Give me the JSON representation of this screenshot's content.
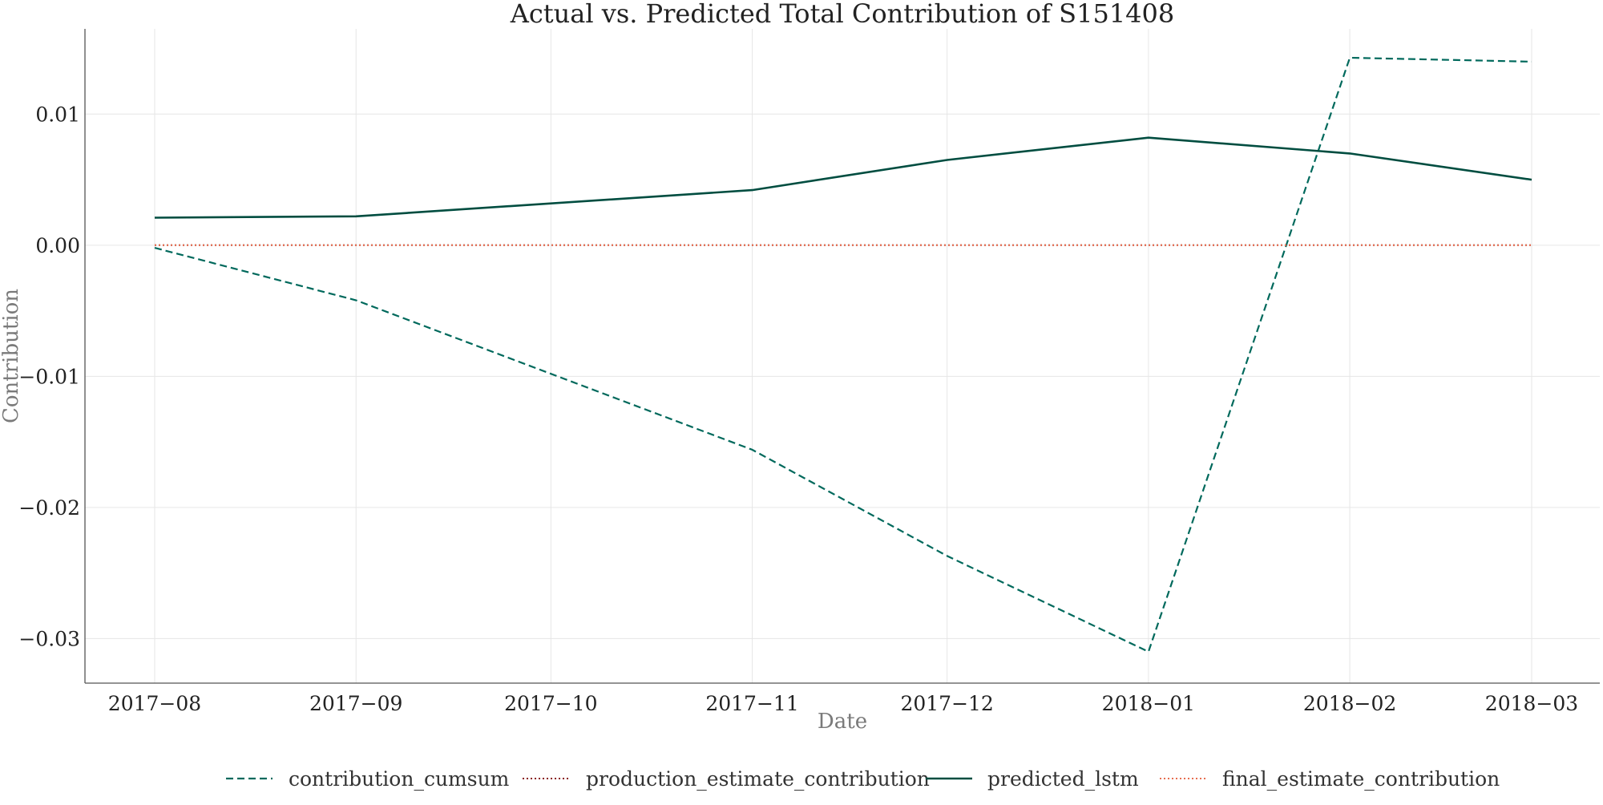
{
  "chart_data": {
    "type": "line",
    "title": "Actual vs. Predicted Total Contribution of S151408",
    "xlabel": "Date",
    "ylabel": "Contribution",
    "x": [
      "2017-08",
      "2017-09",
      "2017-10",
      "2017-11",
      "2017-12",
      "2018-01",
      "2018-02",
      "2018-03"
    ],
    "x_tick_labels": [
      "2017−08",
      "2017−09",
      "2017−10",
      "2017−11",
      "2017−12",
      "2018−01",
      "2018−02",
      "2018−03"
    ],
    "y_ticks": [
      0.01,
      0.0,
      -0.01,
      -0.02,
      -0.03
    ],
    "y_tick_labels": [
      "0.01",
      "0.00",
      "−0.01",
      "−0.02",
      "−0.03"
    ],
    "ylim": [
      -0.0334,
      0.0165
    ],
    "grid": true,
    "legend_position": "bottom-center",
    "series": [
      {
        "name": "contribution_cumsum",
        "style": "dashed",
        "color": "#00695c",
        "points": [
          {
            "x": "2017-08-01",
            "y": -0.0002
          },
          {
            "x": "2017-09-01",
            "y": -0.0042
          },
          {
            "x": "2017-11-01",
            "y": -0.0156
          },
          {
            "x": "2017-12-01",
            "y": -0.0237
          },
          {
            "x": "2018-01-01",
            "y": -0.031
          },
          {
            "x": "2018-02-01",
            "y": 0.0143
          },
          {
            "x": "2018-03-01",
            "y": 0.014
          }
        ]
      },
      {
        "name": "production_estimate_contribution",
        "style": "dotted",
        "color": "#8b1a1a",
        "points": [
          {
            "x": "2017-08-01",
            "y": 0.0
          },
          {
            "x": "2017-09-01",
            "y": 0.0
          },
          {
            "x": "2017-11-01",
            "y": 0.0
          },
          {
            "x": "2017-12-01",
            "y": 0.0
          },
          {
            "x": "2018-01-01",
            "y": 0.0
          },
          {
            "x": "2018-02-01",
            "y": 0.0
          },
          {
            "x": "2018-03-01",
            "y": 0.0
          }
        ]
      },
      {
        "name": "predicted_lstm",
        "style": "solid",
        "color": "#004d40",
        "points": [
          {
            "x": "2017-08-01",
            "y": 0.0021
          },
          {
            "x": "2017-09-01",
            "y": 0.0022
          },
          {
            "x": "2017-11-01",
            "y": 0.0042
          },
          {
            "x": "2017-12-01",
            "y": 0.0065
          },
          {
            "x": "2018-01-01",
            "y": 0.0082
          },
          {
            "x": "2018-02-01",
            "y": 0.007
          },
          {
            "x": "2018-03-01",
            "y": 0.005
          }
        ]
      },
      {
        "name": "final_estimate_contribution",
        "style": "dotted",
        "color": "#e76f51",
        "points": [
          {
            "x": "2017-08-01",
            "y": 0.0
          },
          {
            "x": "2017-09-01",
            "y": 0.0
          },
          {
            "x": "2017-11-01",
            "y": 0.0
          },
          {
            "x": "2017-12-01",
            "y": 0.0
          },
          {
            "x": "2018-01-01",
            "y": 0.0
          },
          {
            "x": "2018-02-01",
            "y": 0.0
          },
          {
            "x": "2018-03-01",
            "y": 0.0
          }
        ]
      }
    ]
  }
}
